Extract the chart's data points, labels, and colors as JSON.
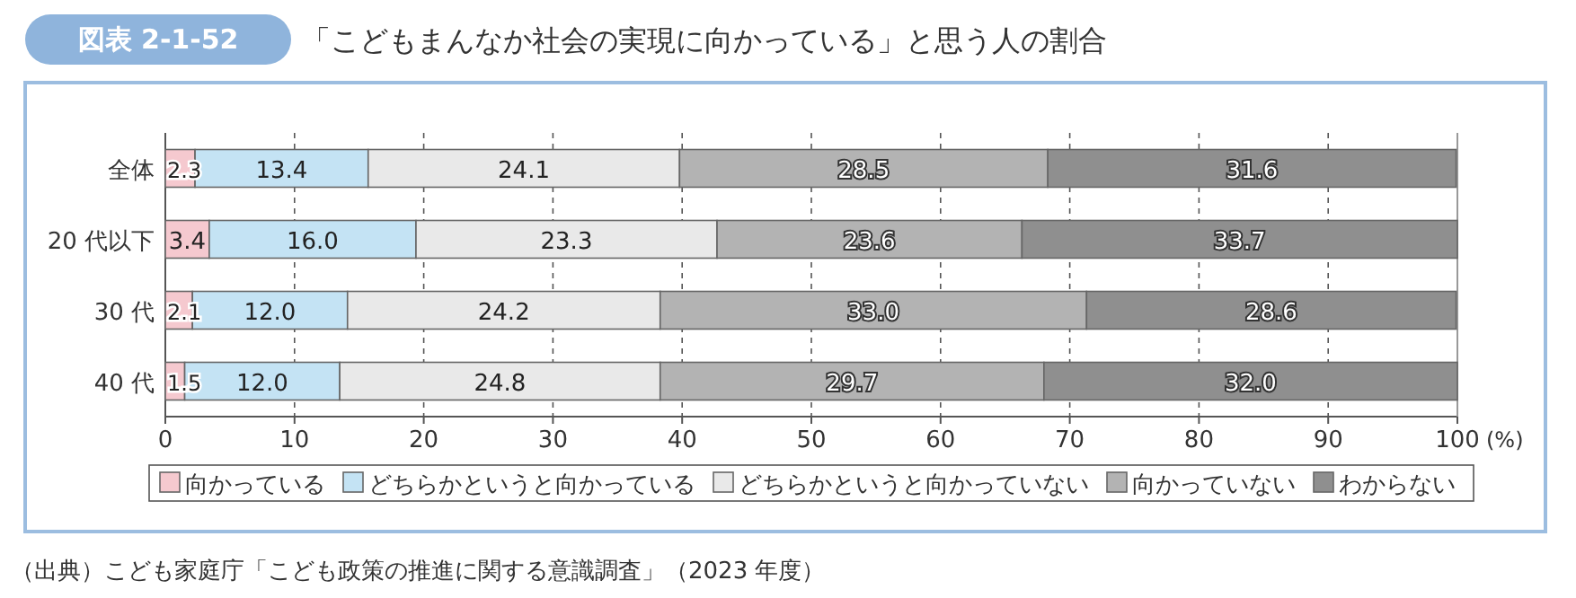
{
  "chart_data": {
    "type": "bar",
    "orientation": "horizontal",
    "stacked": true,
    "title": "「こどもまんなか社会の実現に向かっている」と思う人の割合",
    "xlabel": "(%)",
    "categories": [
      "全体",
      "20 代以下",
      "30 代",
      "40 代"
    ],
    "series": [
      {
        "name": "向かっている",
        "color": "#f5c9cf",
        "values": [
          2.3,
          3.4,
          2.1,
          1.5
        ],
        "value_labels": [
          "2.3",
          "3.4",
          "2.1",
          "1.5"
        ]
      },
      {
        "name": "どちらかというと向かっている",
        "color": "#c4e3f4",
        "values": [
          13.4,
          16.0,
          12.0,
          12.0
        ],
        "value_labels": [
          "13.4",
          "16.0",
          "12.0",
          "12.0"
        ]
      },
      {
        "name": "どちらかというと向かっていない",
        "color": "#e9e9e9",
        "values": [
          24.1,
          23.3,
          24.2,
          24.8
        ],
        "value_labels": [
          "24.1",
          "23.3",
          "24.2",
          "24.8"
        ]
      },
      {
        "name": "向かっていない",
        "color": "#b3b3b3",
        "values": [
          28.5,
          23.6,
          33.0,
          29.7
        ],
        "value_labels": [
          "28.5",
          "23.6",
          "33.0",
          "29.7"
        ]
      },
      {
        "name": "わからない",
        "color": "#8f8f8f",
        "values": [
          31.6,
          33.7,
          28.6,
          32.0
        ],
        "value_labels": [
          "31.6",
          "33.7",
          "28.6",
          "32.0"
        ]
      }
    ],
    "xlim": [
      0,
      100
    ],
    "xticks": [
      0,
      10,
      20,
      30,
      40,
      50,
      60,
      70,
      80,
      90,
      100
    ],
    "grid": "x",
    "legend": "bottom",
    "annotations": [
      "図表 2-1-52",
      "（出典）こども家庭庁「こども政策の推進に関する意識調査」（2023 年度）"
    ]
  }
}
